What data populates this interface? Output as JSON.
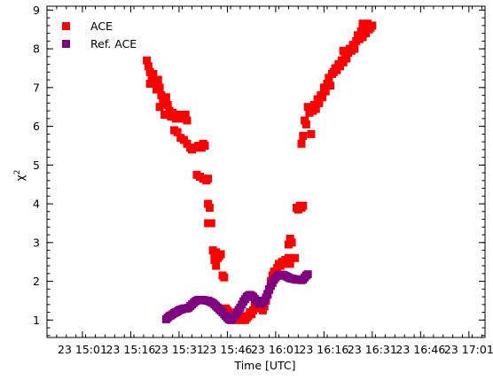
{
  "chart_data": {
    "type": "scatter",
    "title": "",
    "xlabel": "Time [UTC]",
    "ylabel_main": "χ",
    "ylabel_sup": "2",
    "x_unit": "minutes after 23 15:00 UTC",
    "xlim": [
      -9,
      127
    ],
    "ylim": [
      0.55,
      9.1
    ],
    "x_ticks": [
      {
        "value": 2,
        "label": "23 15:01"
      },
      {
        "value": 17,
        "label": "23 15:16"
      },
      {
        "value": 32,
        "label": "23 15:31"
      },
      {
        "value": 47,
        "label": "23 15:46"
      },
      {
        "value": 62,
        "label": "23 16:01"
      },
      {
        "value": 77,
        "label": "23 16:16"
      },
      {
        "value": 92,
        "label": "23 16:31"
      },
      {
        "value": 107,
        "label": "23 16:46"
      },
      {
        "value": 122,
        "label": "23 17:01"
      }
    ],
    "y_ticks": [
      1,
      2,
      3,
      4,
      5,
      6,
      7,
      8,
      9
    ],
    "grid": false,
    "legend_position": "top-left",
    "series": [
      {
        "name": "ACE",
        "color": "#ff0000",
        "marker": "square",
        "points": [
          [
            22.0,
            7.7
          ],
          [
            22.5,
            7.55
          ],
          [
            23.0,
            7.4
          ],
          [
            23.5,
            7.25
          ],
          [
            23.0,
            7.1
          ],
          [
            24.0,
            7.35
          ],
          [
            24.5,
            7.1
          ],
          [
            25.0,
            6.95
          ],
          [
            25.5,
            7.2
          ],
          [
            26.0,
            7.0
          ],
          [
            26.5,
            6.8
          ],
          [
            27.0,
            6.6
          ],
          [
            26.0,
            6.5
          ],
          [
            27.5,
            6.3
          ],
          [
            28.0,
            6.75
          ],
          [
            28.5,
            6.55
          ],
          [
            29.0,
            6.4
          ],
          [
            29.5,
            6.25
          ],
          [
            30.0,
            6.35
          ],
          [
            30.5,
            5.9
          ],
          [
            31.0,
            6.2
          ],
          [
            31.5,
            5.85
          ],
          [
            32.0,
            6.3
          ],
          [
            33.0,
            6.2
          ],
          [
            34.0,
            6.3
          ],
          [
            34.5,
            6.15
          ],
          [
            32.5,
            5.7
          ],
          [
            33.5,
            5.65
          ],
          [
            34.5,
            5.55
          ],
          [
            35.5,
            5.45
          ],
          [
            36.0,
            5.4
          ],
          [
            37.0,
            5.45
          ],
          [
            38.0,
            5.5
          ],
          [
            39.0,
            5.45
          ],
          [
            39.5,
            5.55
          ],
          [
            40.0,
            5.5
          ],
          [
            37.5,
            4.75
          ],
          [
            38.5,
            4.7
          ],
          [
            39.5,
            4.65
          ],
          [
            40.5,
            4.6
          ],
          [
            41.0,
            4.65
          ],
          [
            41.0,
            4.0
          ],
          [
            41.5,
            3.9
          ],
          [
            41.0,
            3.5
          ],
          [
            42.0,
            3.5
          ],
          [
            42.5,
            2.8
          ],
          [
            43.0,
            2.7
          ],
          [
            43.0,
            2.55
          ],
          [
            43.5,
            2.75
          ],
          [
            44.0,
            2.6
          ],
          [
            44.5,
            2.65
          ],
          [
            45.0,
            2.7
          ],
          [
            43.5,
            2.4
          ],
          [
            45.5,
            2.15
          ],
          [
            46.0,
            2.1
          ],
          [
            46.5,
            1.3
          ],
          [
            47.0,
            1.25
          ],
          [
            47.5,
            1.2
          ],
          [
            48.0,
            1.1
          ],
          [
            48.5,
            1.0
          ],
          [
            49.0,
            1.05
          ],
          [
            49.5,
            1.0
          ],
          [
            50.0,
            1.1
          ],
          [
            50.5,
            1.15
          ],
          [
            51.0,
            1.05
          ],
          [
            51.5,
            1.0
          ],
          [
            52.0,
            1.1
          ],
          [
            52.5,
            1.0
          ],
          [
            53.0,
            1.05
          ],
          [
            53.5,
            1.1
          ],
          [
            54.0,
            1.2
          ],
          [
            54.5,
            1.15
          ],
          [
            55.0,
            1.25
          ],
          [
            55.5,
            1.35
          ],
          [
            56.0,
            1.4
          ],
          [
            56.5,
            1.5
          ],
          [
            57.0,
            1.4
          ],
          [
            57.5,
            1.3
          ],
          [
            58.0,
            1.25
          ],
          [
            58.5,
            1.35
          ],
          [
            59.0,
            1.5
          ],
          [
            59.5,
            1.65
          ],
          [
            60.0,
            1.8
          ],
          [
            60.5,
            2.0
          ],
          [
            61.0,
            2.15
          ],
          [
            61.5,
            2.25
          ],
          [
            62.0,
            2.2
          ],
          [
            62.5,
            2.35
          ],
          [
            63.0,
            2.45
          ],
          [
            63.5,
            2.4
          ],
          [
            64.0,
            2.5
          ],
          [
            64.5,
            2.45
          ],
          [
            65.0,
            2.55
          ],
          [
            65.5,
            2.5
          ],
          [
            66.0,
            2.6
          ],
          [
            66.5,
            2.45
          ],
          [
            66.0,
            2.95
          ],
          [
            66.5,
            3.1
          ],
          [
            67.0,
            3.0
          ],
          [
            68.0,
            2.6
          ],
          [
            68.5,
            3.9
          ],
          [
            69.0,
            3.85
          ],
          [
            69.5,
            3.95
          ],
          [
            70.0,
            3.9
          ],
          [
            70.5,
            3.95
          ],
          [
            70.0,
            5.55
          ],
          [
            70.5,
            5.75
          ],
          [
            71.0,
            6.15
          ],
          [
            71.5,
            6.05
          ],
          [
            72.0,
            6.5
          ],
          [
            72.5,
            6.35
          ],
          [
            73.0,
            5.8
          ],
          [
            73.5,
            6.4
          ],
          [
            74.0,
            6.55
          ],
          [
            74.5,
            6.45
          ],
          [
            75.0,
            6.7
          ],
          [
            75.5,
            6.6
          ],
          [
            76.0,
            6.8
          ],
          [
            76.5,
            6.75
          ],
          [
            77.0,
            7.0
          ],
          [
            77.5,
            6.9
          ],
          [
            78.0,
            7.1
          ],
          [
            78.5,
            7.25
          ],
          [
            79.0,
            7.05
          ],
          [
            79.5,
            7.35
          ],
          [
            80.0,
            7.4
          ],
          [
            80.5,
            7.5
          ],
          [
            81.0,
            7.45
          ],
          [
            81.5,
            7.6
          ],
          [
            82.0,
            7.55
          ],
          [
            82.5,
            7.7
          ],
          [
            83.0,
            7.65
          ],
          [
            83.5,
            7.8
          ],
          [
            84.0,
            7.75
          ],
          [
            84.5,
            7.9
          ],
          [
            85.0,
            8.0
          ],
          [
            85.5,
            7.95
          ],
          [
            86.0,
            8.1
          ],
          [
            86.5,
            8.0
          ],
          [
            87.0,
            8.2
          ],
          [
            87.5,
            8.35
          ],
          [
            88.0,
            8.25
          ],
          [
            88.5,
            8.45
          ],
          [
            89.0,
            8.3
          ],
          [
            89.5,
            8.55
          ],
          [
            90.0,
            8.4
          ],
          [
            90.5,
            8.65
          ],
          [
            91.0,
            8.5
          ],
          [
            91.5,
            8.55
          ],
          [
            92.0,
            8.6
          ],
          [
            89.0,
            8.65
          ],
          [
            83.0,
            7.95
          ]
        ]
      },
      {
        "name": "Ref. ACE",
        "color": "#800080",
        "marker": "square",
        "points": [
          [
            28.0,
            1.02
          ],
          [
            28.5,
            1.06
          ],
          [
            29.0,
            1.1
          ],
          [
            29.5,
            1.12
          ],
          [
            30.0,
            1.15
          ],
          [
            30.5,
            1.18
          ],
          [
            31.0,
            1.2
          ],
          [
            31.5,
            1.22
          ],
          [
            32.0,
            1.25
          ],
          [
            32.5,
            1.27
          ],
          [
            33.0,
            1.28
          ],
          [
            33.5,
            1.3
          ],
          [
            34.0,
            1.3
          ],
          [
            34.5,
            1.3
          ],
          [
            35.0,
            1.32
          ],
          [
            35.5,
            1.36
          ],
          [
            36.0,
            1.4
          ],
          [
            36.5,
            1.44
          ],
          [
            37.0,
            1.48
          ],
          [
            37.5,
            1.5
          ],
          [
            38.0,
            1.52
          ],
          [
            38.5,
            1.52
          ],
          [
            39.0,
            1.52
          ],
          [
            39.5,
            1.52
          ],
          [
            40.0,
            1.51
          ],
          [
            40.5,
            1.5
          ],
          [
            41.0,
            1.5
          ],
          [
            41.5,
            1.48
          ],
          [
            42.0,
            1.46
          ],
          [
            42.5,
            1.44
          ],
          [
            43.0,
            1.4
          ],
          [
            43.5,
            1.36
          ],
          [
            44.0,
            1.32
          ],
          [
            44.5,
            1.28
          ],
          [
            45.0,
            1.24
          ],
          [
            45.5,
            1.2
          ],
          [
            46.0,
            1.15
          ],
          [
            46.5,
            1.1
          ],
          [
            47.0,
            1.06
          ],
          [
            47.5,
            1.02
          ],
          [
            48.0,
            1.0
          ],
          [
            48.5,
            1.04
          ],
          [
            49.0,
            1.08
          ],
          [
            49.5,
            1.14
          ],
          [
            50.0,
            1.2
          ],
          [
            50.5,
            1.26
          ],
          [
            51.0,
            1.32
          ],
          [
            51.5,
            1.4
          ],
          [
            52.0,
            1.48
          ],
          [
            52.5,
            1.54
          ],
          [
            53.0,
            1.6
          ],
          [
            53.5,
            1.63
          ],
          [
            54.0,
            1.65
          ],
          [
            54.5,
            1.63
          ],
          [
            55.0,
            1.6
          ],
          [
            55.5,
            1.55
          ],
          [
            56.0,
            1.5
          ],
          [
            56.5,
            1.45
          ],
          [
            57.0,
            1.42
          ],
          [
            57.5,
            1.42
          ],
          [
            58.0,
            1.45
          ],
          [
            58.5,
            1.5
          ],
          [
            59.0,
            1.58
          ],
          [
            59.5,
            1.68
          ],
          [
            60.0,
            1.78
          ],
          [
            60.5,
            1.88
          ],
          [
            61.0,
            1.96
          ],
          [
            61.5,
            2.04
          ],
          [
            62.0,
            2.1
          ],
          [
            62.5,
            2.14
          ],
          [
            63.0,
            2.16
          ],
          [
            63.5,
            2.17
          ],
          [
            64.0,
            2.17
          ],
          [
            64.5,
            2.16
          ],
          [
            65.0,
            2.14
          ],
          [
            65.5,
            2.12
          ],
          [
            66.0,
            2.1
          ],
          [
            66.5,
            2.08
          ],
          [
            67.0,
            2.07
          ],
          [
            67.5,
            2.06
          ],
          [
            68.0,
            2.05
          ],
          [
            68.5,
            2.04
          ],
          [
            69.0,
            2.04
          ],
          [
            69.5,
            2.05
          ],
          [
            70.0,
            2.03
          ],
          [
            70.5,
            2.05
          ],
          [
            71.0,
            2.1
          ],
          [
            71.5,
            2.15
          ],
          [
            72.0,
            2.18
          ]
        ]
      }
    ]
  }
}
